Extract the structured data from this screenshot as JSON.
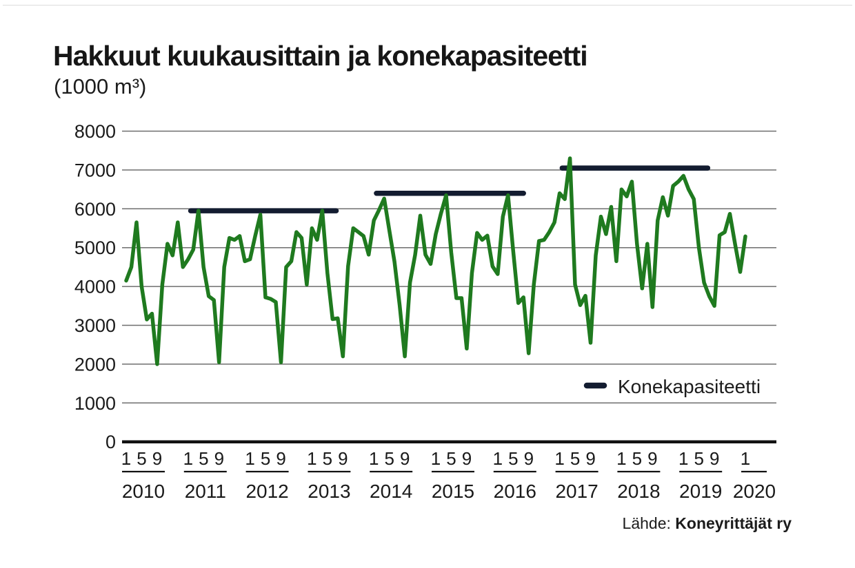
{
  "page": {
    "title": "Hakkuut kuukausittain ja konekapasiteetti",
    "subtitle": "(1000 m³)",
    "source_label": "Lähde:",
    "source_value": "Koneyrittäjät ry"
  },
  "legend": {
    "capacity_label": "Konekapasiteetti"
  },
  "colors": {
    "fellings_line": "#1f7a1f",
    "capacity_bar": "#131c30",
    "grid": "#6e6e6e",
    "axis": "#111111",
    "text": "#1a1a1a"
  },
  "chart_data": {
    "type": "line",
    "title": "Hakkuut kuukausittain ja konekapasiteetti",
    "unit": "1000 m³",
    "ylim": [
      0,
      8000
    ],
    "ytick_interval": 1000,
    "ytick_labels": [
      "0",
      "1000",
      "2000",
      "3000",
      "4000",
      "5000",
      "6000",
      "7000",
      "8000"
    ],
    "grid": true,
    "x_month_tick_labels": [
      "1",
      "5",
      "9"
    ],
    "x_year_labels": [
      "2010",
      "2011",
      "2012",
      "2013",
      "2014",
      "2015",
      "2016",
      "2017",
      "2018",
      "2019",
      "2020"
    ],
    "legend_position": "inside-right-bottom",
    "series": [
      {
        "name": "Hakkuut kuukausittain",
        "start_month": "2010-01",
        "end_month": "2020-01",
        "monthly_values": [
          4150,
          4500,
          5650,
          4000,
          3150,
          3300,
          2000,
          4050,
          5100,
          4800,
          5650,
          4500,
          4700,
          4950,
          5950,
          4500,
          3750,
          3650,
          2050,
          4500,
          5250,
          5200,
          5300,
          4650,
          4700,
          5300,
          5850,
          3720,
          3680,
          3600,
          2050,
          4500,
          4650,
          5400,
          5250,
          4050,
          5500,
          5200,
          5950,
          4350,
          3160,
          3180,
          2200,
          4520,
          5500,
          5400,
          5300,
          4820,
          5700,
          5970,
          6265,
          5450,
          4640,
          3520,
          2200,
          4100,
          4820,
          5825,
          4820,
          4580,
          5350,
          5880,
          6350,
          4880,
          3700,
          3700,
          2400,
          4340,
          5380,
          5200,
          5310,
          4520,
          4320,
          5800,
          6350,
          4930,
          3575,
          3720,
          2280,
          4050,
          5170,
          5200,
          5400,
          5650,
          6400,
          6250,
          7300,
          4050,
          3520,
          3760,
          2550,
          4800,
          5800,
          5350,
          6050,
          4650,
          6500,
          6320,
          6700,
          5100,
          3950,
          5100,
          3470,
          5700,
          6300,
          5825,
          6590,
          6700,
          6850,
          6500,
          6250,
          5000,
          4100,
          3750,
          3500,
          5320,
          5400,
          5870,
          5100,
          4375,
          5290
        ]
      }
    ],
    "capacity_segments": [
      {
        "name": "Konekapasiteetti",
        "value": 5950,
        "from_month_index": 12.5,
        "to_month_index": 40.7
      },
      {
        "name": "Konekapasiteetti",
        "value": 6400,
        "from_month_index": 48.5,
        "to_month_index": 77.0
      },
      {
        "name": "Konekapasiteetti",
        "value": 7050,
        "from_month_index": 84.5,
        "to_month_index": 112.7
      }
    ]
  }
}
